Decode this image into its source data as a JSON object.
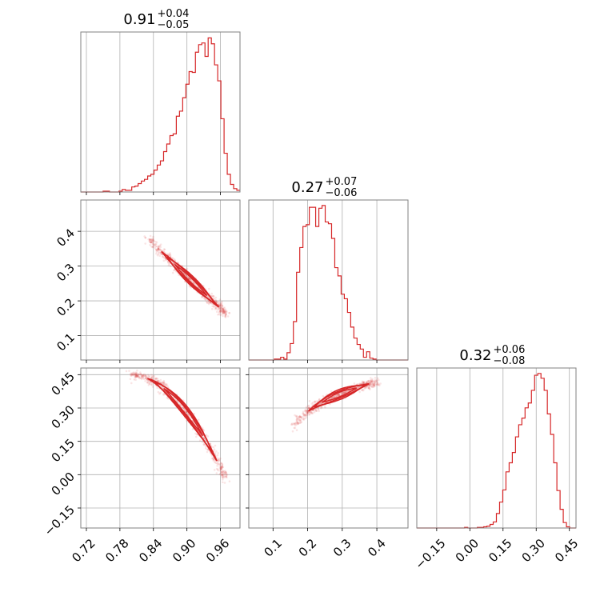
{
  "chart_data": {
    "type": "corner",
    "color": "#d62728",
    "parameters": [
      {
        "title": {
          "median": "0.91",
          "plus": "+0.04",
          "minus": "−0.05"
        },
        "range": [
          0.71,
          0.995
        ],
        "ticks": [
          0.72,
          0.78,
          0.84,
          0.9,
          0.96
        ],
        "tick_labels": [
          "0.72",
          "0.78",
          "0.84",
          "0.90",
          "0.96"
        ],
        "hist_edges_start": 0.71,
        "hist_bin_width": 0.0057,
        "hist_counts": [
          0,
          0,
          0,
          0,
          0,
          0,
          0,
          1,
          1,
          0,
          0,
          0,
          1,
          3,
          2,
          2,
          6,
          7,
          10,
          13,
          15,
          19,
          21,
          26,
          32,
          37,
          48,
          57,
          67,
          69,
          90,
          96,
          112,
          128,
          143,
          142,
          166,
          175,
          177,
          161,
          183,
          176,
          151,
          132,
          87,
          46,
          21,
          9,
          4,
          2
        ],
        "hist_max": 190
      },
      {
        "title": {
          "median": "0.27",
          "plus": "+0.07",
          "minus": "−0.06"
        },
        "range": [
          0.03,
          0.49
        ],
        "ticks": [
          0.1,
          0.2,
          0.3,
          0.4
        ],
        "tick_labels": [
          "0.1",
          "0.2",
          "0.3",
          "0.4"
        ],
        "hist_edges_start": 0.03,
        "hist_bin_width": 0.0092,
        "hist_counts": [
          0,
          0,
          0,
          0,
          0,
          0,
          0,
          0,
          1,
          1,
          3,
          1,
          8,
          18,
          42,
          96,
          123,
          146,
          148,
          167,
          167,
          146,
          166,
          169,
          151,
          149,
          133,
          101,
          92,
          72,
          67,
          52,
          36,
          24,
          17,
          12,
          3,
          9,
          2,
          1,
          0,
          0,
          0,
          0,
          0,
          0,
          0,
          0,
          0,
          0
        ],
        "hist_max": 175
      },
      {
        "title": {
          "median": "0.32",
          "plus": "+0.06",
          "minus": "−0.08"
        },
        "range": [
          -0.24,
          0.48
        ],
        "ticks": [
          -0.15,
          0.0,
          0.15,
          0.3,
          0.45
        ],
        "tick_labels": [
          "−0.15",
          "0.00",
          "0.15",
          "0.30",
          "0.45"
        ],
        "hist_edges_start": -0.24,
        "hist_bin_width": 0.0144,
        "hist_counts": [
          0,
          0,
          0,
          0,
          0,
          0,
          0,
          0,
          0,
          0,
          0,
          0,
          0,
          0,
          0,
          1,
          0,
          0,
          0,
          1,
          1,
          2,
          3,
          6,
          10,
          24,
          43,
          63,
          93,
          108,
          125,
          151,
          171,
          182,
          199,
          207,
          228,
          253,
          256,
          248,
          228,
          189,
          155,
          108,
          62,
          31,
          9,
          2,
          0,
          0
        ],
        "hist_max": 265
      }
    ]
  }
}
